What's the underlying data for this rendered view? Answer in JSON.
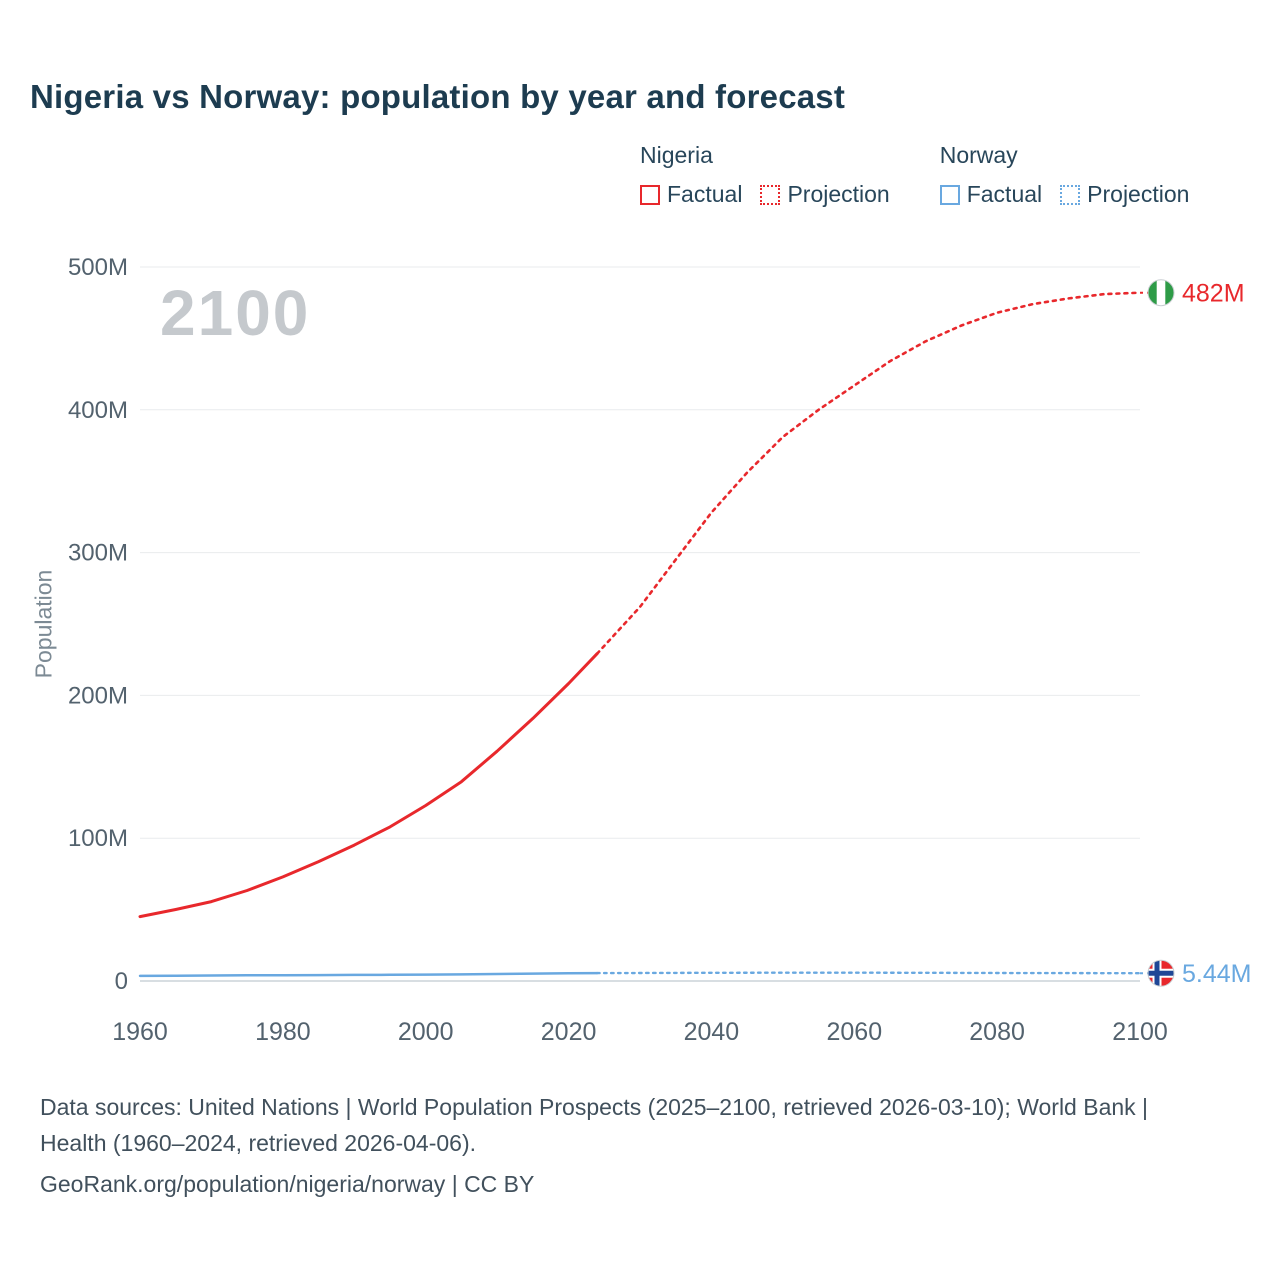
{
  "title": "Nigeria vs Norway: population by year and forecast",
  "watermark": "2100",
  "legend": {
    "groups": [
      {
        "name": "Nigeria",
        "color": "#e8282c",
        "items": [
          {
            "label": "Factual",
            "style": "solid"
          },
          {
            "label": "Projection",
            "style": "dotted"
          }
        ]
      },
      {
        "name": "Norway",
        "color": "#69a8e0",
        "items": [
          {
            "label": "Factual",
            "style": "solid"
          },
          {
            "label": "Projection",
            "style": "dotted"
          }
        ]
      }
    ]
  },
  "chart_data": {
    "type": "line",
    "title": "Nigeria vs Norway: population by year and forecast",
    "xlabel": "",
    "ylabel": "Population",
    "x_range": [
      1960,
      2100
    ],
    "y_range": [
      0,
      500
    ],
    "y_unit": "millions",
    "grid": true,
    "legend_position": "top-right",
    "yticks": [
      {
        "value": 0,
        "label": "0"
      },
      {
        "value": 100,
        "label": "100M"
      },
      {
        "value": 200,
        "label": "200M"
      },
      {
        "value": 300,
        "label": "300M"
      },
      {
        "value": 400,
        "label": "400M"
      },
      {
        "value": 500,
        "label": "500M"
      }
    ],
    "xticks": [
      1960,
      1980,
      2000,
      2020,
      2040,
      2060,
      2080,
      2100
    ],
    "series": [
      {
        "id": "nigeria-factual",
        "name": "Nigeria Factual",
        "color": "#e8282c",
        "style": "solid",
        "width": 3,
        "dash": "",
        "x": [
          1960,
          1965,
          1970,
          1975,
          1980,
          1985,
          1990,
          1995,
          2000,
          2005,
          2010,
          2015,
          2020,
          2024
        ],
        "y": [
          45.1,
          50.1,
          55.6,
          63.4,
          72.9,
          83.6,
          95.2,
          107.9,
          122.9,
          139.6,
          160.9,
          183.9,
          208.3,
          229.2
        ]
      },
      {
        "id": "nigeria-projection",
        "name": "Nigeria Projection",
        "color": "#e8282c",
        "style": "dotted",
        "width": 2.6,
        "dash": "3 5",
        "x": [
          2024,
          2030,
          2035,
          2040,
          2045,
          2050,
          2055,
          2060,
          2065,
          2070,
          2075,
          2080,
          2085,
          2090,
          2095,
          2100
        ],
        "y": [
          229.2,
          262,
          295,
          328,
          356,
          381,
          400,
          417,
          434,
          448,
          459,
          468,
          474,
          478,
          481,
          482
        ]
      },
      {
        "id": "norway-factual",
        "name": "Norway Factual",
        "color": "#69a8e0",
        "style": "solid",
        "width": 2.5,
        "dash": "",
        "x": [
          1960,
          1965,
          1970,
          1975,
          1980,
          1985,
          1990,
          1995,
          2000,
          2005,
          2010,
          2015,
          2020,
          2024
        ],
        "y": [
          3.58,
          3.72,
          3.88,
          4.01,
          4.09,
          4.15,
          4.24,
          4.36,
          4.49,
          4.62,
          4.89,
          5.19,
          5.38,
          5.52
        ]
      },
      {
        "id": "norway-projection",
        "name": "Norway Projection",
        "color": "#69a8e0",
        "style": "dotted",
        "width": 2.4,
        "dash": "2.5 4.5",
        "x": [
          2024,
          2030,
          2040,
          2050,
          2060,
          2070,
          2080,
          2090,
          2100
        ],
        "y": [
          5.52,
          5.62,
          5.74,
          5.79,
          5.78,
          5.72,
          5.63,
          5.53,
          5.44
        ]
      }
    ],
    "end_labels": [
      {
        "flag": "nigeria",
        "text": "482M",
        "value": 482,
        "color": "#e8282c"
      },
      {
        "flag": "norway",
        "text": "5.44M",
        "value": 5.44,
        "color": "#69a8e0"
      }
    ]
  },
  "footer": {
    "line1": "Data sources: United Nations | World Population Prospects (2025–2100, retrieved 2026-03-10); World Bank | Health (1960–2024, retrieved 2026-04-06).",
    "line2": "GeoRank.org/population/nigeria/norway | CC BY"
  }
}
